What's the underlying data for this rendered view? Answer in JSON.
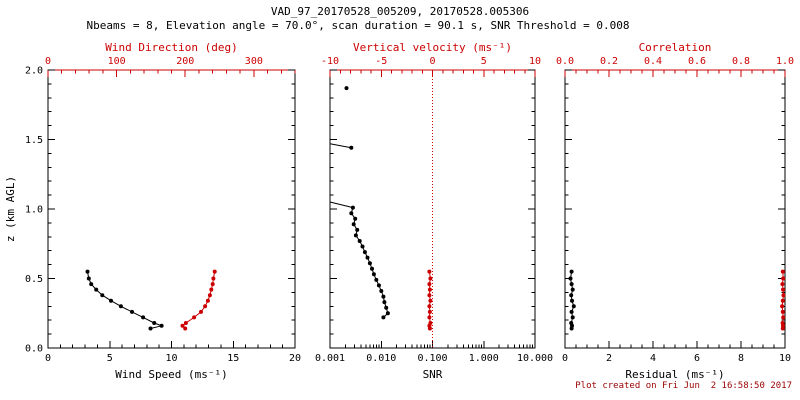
{
  "header": {
    "title": "VAD_97_20170528_005209, 20170528.005306",
    "subtitle": "Nbeams = 8, Elevation angle = 70.0°, scan duration = 90.1 s, SNR Threshold = 0.008"
  },
  "footer": {
    "created": "Plot created on Fri Jun  2 16:58:50 2017"
  },
  "colors": {
    "accent": "#cc0000",
    "black": "#000000",
    "timestamp": "#990000",
    "background": "#ffffff"
  },
  "chart_data": [
    {
      "name": "wind",
      "type": "line",
      "point_format": "[z_km_agl, value]",
      "ylabel": "z (km AGL)",
      "ylim": [
        0,
        2
      ],
      "yticks": [
        0,
        0.5,
        1,
        1.5,
        2
      ],
      "ytick_labels": [
        "0.0",
        "0.5",
        "1.0",
        "1.5",
        "2.0"
      ],
      "bottom_axis": {
        "label": "Wind Speed (ms⁻¹)",
        "lim": [
          0,
          20
        ],
        "ticks": [
          0,
          5,
          10,
          15,
          20
        ],
        "minor": 1,
        "color": "#000000"
      },
      "top_axis": {
        "label": "Wind Direction (deg)",
        "lim": [
          0,
          360
        ],
        "ticks": [
          0,
          100,
          200,
          300
        ],
        "minor": 20,
        "color": "#cc0000"
      },
      "series": [
        {
          "name": "wind-speed",
          "axis": "bottom",
          "color": "#000000",
          "points": [
            [
              0.55,
              3.2
            ],
            [
              0.5,
              3.3
            ],
            [
              0.46,
              3.5
            ],
            [
              0.42,
              3.9
            ],
            [
              0.38,
              4.4
            ],
            [
              0.34,
              5.1
            ],
            [
              0.3,
              5.9
            ],
            [
              0.26,
              6.8
            ],
            [
              0.22,
              7.7
            ],
            [
              0.18,
              8.6
            ],
            [
              0.16,
              9.2
            ],
            [
              0.14,
              8.3
            ]
          ]
        },
        {
          "name": "wind-direction",
          "axis": "top",
          "color": "#cc0000",
          "points": [
            [
              0.55,
              243
            ],
            [
              0.5,
              241
            ],
            [
              0.46,
              240
            ],
            [
              0.42,
              238
            ],
            [
              0.38,
              236
            ],
            [
              0.34,
              233
            ],
            [
              0.3,
              229
            ],
            [
              0.26,
              223
            ],
            [
              0.22,
              213
            ],
            [
              0.18,
              201
            ],
            [
              0.16,
              196
            ],
            [
              0.14,
              200
            ]
          ]
        }
      ]
    },
    {
      "name": "snr",
      "type": "line",
      "point_format": "[z_km_agl, value]",
      "ylim": [
        0,
        2
      ],
      "yticks": [
        0,
        0.5,
        1,
        1.5,
        2
      ],
      "bottom_axis": {
        "label": "SNR",
        "lim": [
          0.001,
          10
        ],
        "scale": "log",
        "ticks": [
          0.001,
          0.01,
          0.1,
          1,
          10
        ],
        "tick_labels": [
          "0.001",
          "0.010",
          "0.100",
          "1.000",
          "10.000"
        ],
        "color": "#000000"
      },
      "top_axis": {
        "label": "Vertical velocity (ms⁻¹)",
        "lim": [
          -10,
          10
        ],
        "ticks": [
          -10,
          -5,
          0,
          5,
          10
        ],
        "minor": 1,
        "color": "#cc0000"
      },
      "ref_line": {
        "axis": "top",
        "value": 0,
        "color": "#cc0000",
        "style": "dotted"
      },
      "series": [
        {
          "name": "snr-isolated-point",
          "axis": "bottom",
          "color": "#000000",
          "points": [
            [
              1.87,
              0.0021
            ]
          ]
        },
        {
          "name": "snr-upper-segment",
          "axis": "bottom",
          "color": "#000000",
          "no_marker_first": true,
          "points": [
            [
              1.47,
              0.001
            ],
            [
              1.44,
              0.0026
            ]
          ]
        },
        {
          "name": "snr-profile",
          "axis": "bottom",
          "color": "#000000",
          "no_marker_first": true,
          "points": [
            [
              1.05,
              0.001
            ],
            [
              1.01,
              0.0028
            ],
            [
              0.97,
              0.0026
            ],
            [
              0.93,
              0.0031
            ],
            [
              0.89,
              0.0029
            ],
            [
              0.85,
              0.0034
            ],
            [
              0.81,
              0.0032
            ],
            [
              0.77,
              0.0038
            ],
            [
              0.73,
              0.0043
            ],
            [
              0.69,
              0.0048
            ],
            [
              0.65,
              0.0054
            ],
            [
              0.61,
              0.006
            ],
            [
              0.57,
              0.0066
            ],
            [
              0.53,
              0.0072
            ],
            [
              0.49,
              0.008
            ],
            [
              0.45,
              0.009
            ],
            [
              0.41,
              0.01
            ],
            [
              0.37,
              0.011
            ],
            [
              0.33,
              0.0115
            ],
            [
              0.29,
              0.0125
            ],
            [
              0.25,
              0.0135
            ],
            [
              0.22,
              0.011
            ]
          ]
        },
        {
          "name": "vertical-velocity",
          "axis": "top",
          "color": "#cc0000",
          "points": [
            [
              0.55,
              -0.3
            ],
            [
              0.5,
              -0.2
            ],
            [
              0.46,
              -0.3
            ],
            [
              0.42,
              -0.25
            ],
            [
              0.38,
              -0.3
            ],
            [
              0.34,
              -0.2
            ],
            [
              0.3,
              -0.3
            ],
            [
              0.26,
              -0.25
            ],
            [
              0.22,
              -0.3
            ],
            [
              0.18,
              -0.2
            ],
            [
              0.16,
              -0.3
            ],
            [
              0.14,
              -0.25
            ]
          ]
        }
      ]
    },
    {
      "name": "residual",
      "type": "line",
      "point_format": "[z_km_agl, value]",
      "ylim": [
        0,
        2
      ],
      "yticks": [
        0,
        0.5,
        1,
        1.5,
        2
      ],
      "bottom_axis": {
        "label": "Residual (ms⁻¹)",
        "lim": [
          0,
          10
        ],
        "ticks": [
          0,
          2,
          4,
          6,
          8,
          10
        ],
        "minor": 0.5,
        "color": "#000000"
      },
      "top_axis": {
        "label": "Correlation",
        "lim": [
          0,
          1
        ],
        "ticks": [
          0,
          0.2,
          0.4,
          0.6,
          0.8,
          1
        ],
        "tick_labels": [
          "0.0",
          "0.2",
          "0.4",
          "0.6",
          "0.8",
          "1.0"
        ],
        "minor": 0.05,
        "color": "#cc0000"
      },
      "series": [
        {
          "name": "residual",
          "axis": "bottom",
          "color": "#000000",
          "points": [
            [
              0.55,
              0.3
            ],
            [
              0.5,
              0.25
            ],
            [
              0.46,
              0.3
            ],
            [
              0.42,
              0.35
            ],
            [
              0.38,
              0.28
            ],
            [
              0.34,
              0.32
            ],
            [
              0.3,
              0.4
            ],
            [
              0.26,
              0.3
            ],
            [
              0.22,
              0.35
            ],
            [
              0.18,
              0.28
            ],
            [
              0.16,
              0.32
            ],
            [
              0.14,
              0.3
            ]
          ]
        },
        {
          "name": "correlation",
          "axis": "top",
          "color": "#cc0000",
          "points": [
            [
              0.55,
              0.99
            ],
            [
              0.5,
              0.992
            ],
            [
              0.46,
              0.988
            ],
            [
              0.42,
              0.991
            ],
            [
              0.38,
              0.993
            ],
            [
              0.34,
              0.99
            ],
            [
              0.3,
              0.987
            ],
            [
              0.26,
              0.99
            ],
            [
              0.22,
              0.992
            ],
            [
              0.18,
              0.989
            ],
            [
              0.16,
              0.991
            ],
            [
              0.14,
              0.99
            ]
          ]
        }
      ]
    }
  ]
}
